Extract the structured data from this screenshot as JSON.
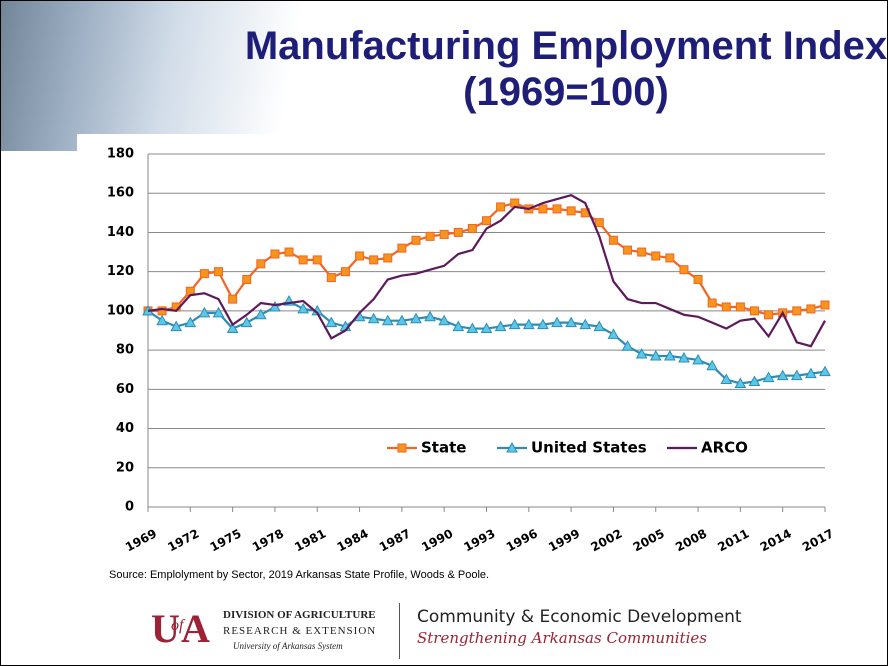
{
  "chart_data": {
    "type": "line",
    "title": "Manufacturing Employment Index (1969=100)",
    "x": [
      1969,
      1970,
      1971,
      1972,
      1973,
      1974,
      1975,
      1976,
      1977,
      1978,
      1979,
      1980,
      1981,
      1982,
      1983,
      1984,
      1985,
      1986,
      1987,
      1988,
      1989,
      1990,
      1991,
      1992,
      1993,
      1994,
      1995,
      1996,
      1997,
      1998,
      1999,
      2000,
      2001,
      2002,
      2003,
      2004,
      2005,
      2006,
      2007,
      2008,
      2009,
      2010,
      2011,
      2012,
      2013,
      2014,
      2015,
      2016,
      2017
    ],
    "series": [
      {
        "name": "State",
        "color": "#f26522",
        "marker": "square",
        "values": [
          100,
          100,
          102,
          110,
          119,
          120,
          106,
          116,
          124,
          129,
          130,
          126,
          126,
          117,
          120,
          128,
          126,
          127,
          132,
          136,
          138,
          139,
          140,
          142,
          146,
          153,
          155,
          152,
          152,
          152,
          151,
          150,
          145,
          136,
          131,
          130,
          128,
          127,
          121,
          116,
          104,
          102,
          102,
          100,
          98,
          99,
          100,
          101,
          103
        ]
      },
      {
        "name": "United States",
        "color": "#2e8bb8",
        "marker": "triangle",
        "values": [
          100,
          95,
          92,
          94,
          99,
          99,
          91,
          94,
          98,
          102,
          105,
          101,
          100,
          94,
          92,
          97,
          96,
          95,
          95,
          96,
          97,
          95,
          92,
          91,
          91,
          92,
          93,
          93,
          93,
          94,
          94,
          93,
          92,
          88,
          82,
          78,
          77,
          77,
          76,
          75,
          72,
          65,
          63,
          64,
          66,
          67,
          67,
          68,
          69
        ]
      },
      {
        "name": "ARCO",
        "color": "#5c1a5c",
        "marker": "none",
        "values": [
          100,
          101,
          100,
          108,
          109,
          106,
          93,
          98,
          104,
          103,
          104,
          105,
          99,
          86,
          90,
          99,
          106,
          116,
          118,
          119,
          121,
          123,
          129,
          131,
          142,
          146,
          153,
          152,
          155,
          157,
          159,
          155,
          138,
          115,
          106,
          104,
          104,
          101,
          98,
          97,
          94,
          91,
          95,
          96,
          87,
          99,
          84,
          82,
          95
        ]
      }
    ],
    "xlim": [
      1969,
      2017
    ],
    "xticks": [
      1969,
      1972,
      1975,
      1978,
      1981,
      1984,
      1987,
      1990,
      1993,
      1996,
      1999,
      2002,
      2005,
      2008,
      2011,
      2014,
      2017
    ],
    "ylim": [
      0,
      180
    ],
    "yticks": [
      0,
      20,
      40,
      60,
      80,
      100,
      120,
      140,
      160,
      180
    ],
    "grid": true,
    "legend": "center"
  },
  "source": "Source: Emplolyment by Sector, 2019 Arkansas State Profile, Woods & Poole.",
  "footer": {
    "logo": [
      "U",
      "of",
      "A"
    ],
    "division": "DIVISION OF AGRICULTURE",
    "research": "RESEARCH & EXTENSION",
    "system": "University of Arkansas System",
    "program": "Community & Economic Development",
    "tagline": "Strengthening Arkansas Communities"
  }
}
